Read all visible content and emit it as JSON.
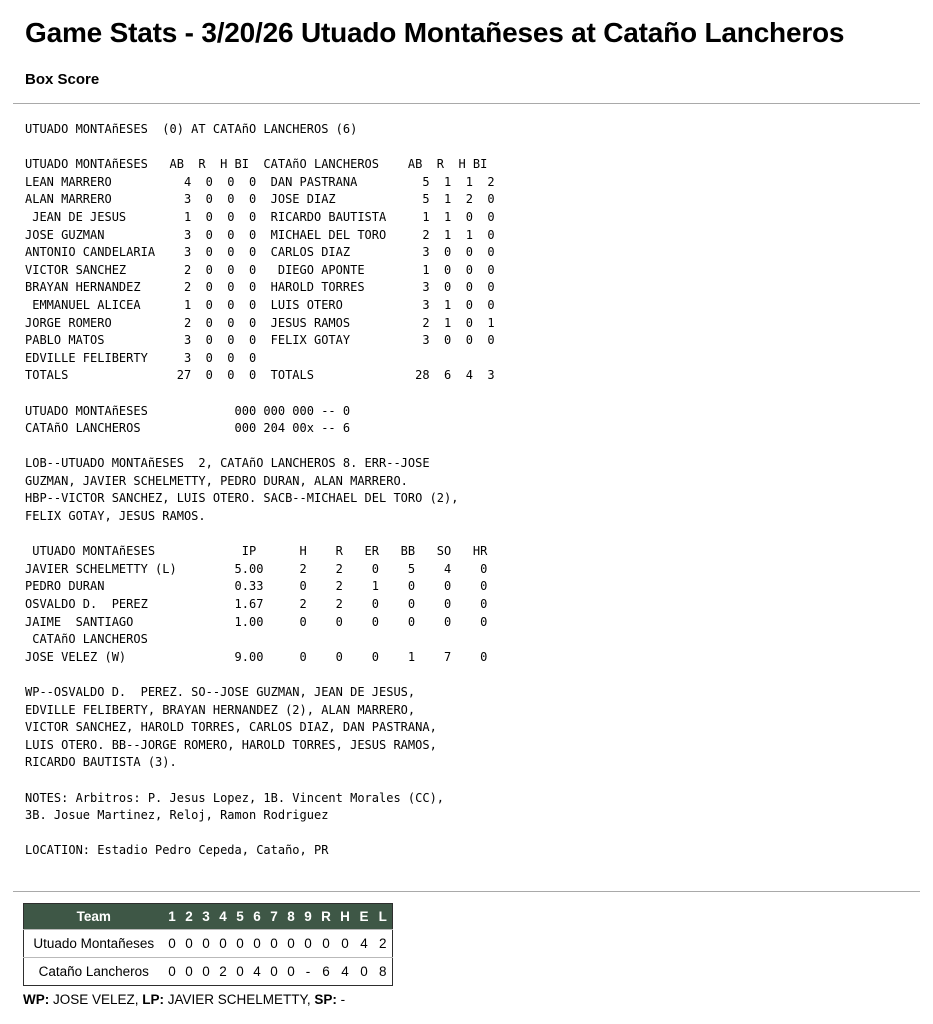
{
  "header": {
    "title": "Game Stats - 3/20/26 Utuado Montañeses at Cataño Lancheros",
    "subtitle": "Box Score"
  },
  "box_score": {
    "lines": [
      "UTUADO MONTAñESES  (0) AT CATAñO LANCHEROS (6)",
      "",
      "UTUADO MONTAñESES   AB  R  H BI  CATAñO LANCHEROS    AB  R  H BI",
      "LEAN MARRERO          4  0  0  0  DAN PASTRANA         5  1  1  2",
      "ALAN MARRERO          3  0  0  0  JOSE DIAZ            5  1  2  0",
      " JEAN DE JESUS        1  0  0  0  RICARDO BAUTISTA     1  1  0  0",
      "JOSE GUZMAN           3  0  0  0  MICHAEL DEL TORO     2  1  1  0",
      "ANTONIO CANDELARIA    3  0  0  0  CARLOS DIAZ          3  0  0  0",
      "VICTOR SANCHEZ        2  0  0  0   DIEGO APONTE        1  0  0  0",
      "BRAYAN HERNANDEZ      2  0  0  0  HAROLD TORRES        3  0  0  0",
      " EMMANUEL ALICEA      1  0  0  0  LUIS OTERO           3  1  0  0",
      "JORGE ROMERO          2  0  0  0  JESUS RAMOS          2  1  0  1",
      "PABLO MATOS           3  0  0  0  FELIX GOTAY          3  0  0  0",
      "EDVILLE FELIBERTY     3  0  0  0",
      "TOTALS               27  0  0  0  TOTALS              28  6  4  3",
      "",
      "UTUADO MONTAñESES            000 000 000 -- 0",
      "CATAñO LANCHEROS             000 204 00x -- 6",
      "",
      "LOB--UTUADO MONTAñESES  2, CATAñO LANCHEROS 8. ERR--JOSE",
      "GUZMAN, JAVIER SCHELMETTY, PEDRO DURAN, ALAN MARRERO.",
      "HBP--VICTOR SANCHEZ, LUIS OTERO. SACB--MICHAEL DEL TORO (2),",
      "FELIX GOTAY, JESUS RAMOS.",
      "",
      " UTUADO MONTAñESES            IP      H    R   ER   BB   SO   HR",
      "JAVIER SCHELMETTY (L)        5.00     2    2    0    5    4    0",
      "PEDRO DURAN                  0.33     0    2    1    0    0    0",
      "OSVALDO D.  PEREZ            1.67     2    2    0    0    0    0",
      "JAIME  SANTIAGO              1.00     0    0    0    0    0    0",
      " CATAñO LANCHEROS",
      "JOSE VELEZ (W)               9.00     0    0    0    1    7    0",
      "",
      "WP--OSVALDO D.  PEREZ. SO--JOSE GUZMAN, JEAN DE JESUS,",
      "EDVILLE FELIBERTY, BRAYAN HERNANDEZ (2), ALAN MARRERO,",
      "VICTOR SANCHEZ, HAROLD TORRES, CARLOS DIAZ, DAN PASTRANA,",
      "LUIS OTERO. BB--JORGE ROMERO, HAROLD TORRES, JESUS RAMOS,",
      "RICARDO BAUTISTA (3).",
      "",
      "NOTES: Arbitros: P. Jesus Lopez, 1B. Vincent Morales (CC),",
      "3B. Josue Martinez, Reloj, Ramon Rodriguez",
      "",
      "LOCATION: Estadio Pedro Cepeda, Cataño, PR"
    ]
  },
  "linescore": {
    "headers": [
      "Team",
      "1",
      "2",
      "3",
      "4",
      "5",
      "6",
      "7",
      "8",
      "9",
      "R",
      "H",
      "E",
      "L"
    ],
    "rows": [
      {
        "cells": [
          "Utuado Montañeses",
          "0",
          "0",
          "0",
          "0",
          "0",
          "0",
          "0",
          "0",
          "0",
          "0",
          "0",
          "4",
          "2"
        ]
      },
      {
        "cells": [
          "Cataño Lancheros",
          "0",
          "0",
          "0",
          "2",
          "0",
          "4",
          "0",
          "0",
          "-",
          "6",
          "4",
          "0",
          "8"
        ]
      }
    ]
  },
  "pitchers_line": {
    "wp_label": "WP:",
    "wp_value": " JOSE VELEZ, ",
    "lp_label": "LP:",
    "lp_value": " JAVIER SCHELMETTY, ",
    "sp_label": "SP:",
    "sp_value": " -"
  },
  "colors": {
    "header_green": "#3e5746",
    "rhel_gray": "#d9d9d9"
  }
}
